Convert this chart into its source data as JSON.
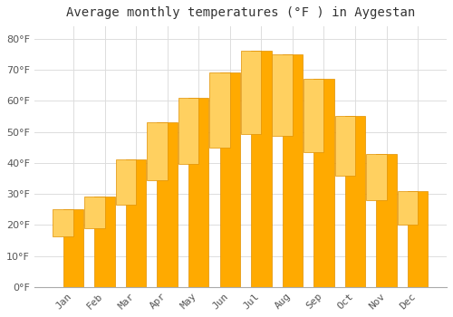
{
  "title": "Average monthly temperatures (°F ) in Aygestan",
  "months": [
    "Jan",
    "Feb",
    "Mar",
    "Apr",
    "May",
    "Jun",
    "Jul",
    "Aug",
    "Sep",
    "Oct",
    "Nov",
    "Dec"
  ],
  "values": [
    25,
    29,
    41,
    53,
    61,
    69,
    76,
    75,
    67,
    55,
    43,
    31
  ],
  "bar_color": "#FFAA00",
  "bar_color_top": "#FFD060",
  "bar_edge_color": "#E09000",
  "background_color": "#FFFFFF",
  "grid_color": "#DDDDDD",
  "ylim": [
    0,
    84
  ],
  "yticks": [
    0,
    10,
    20,
    30,
    40,
    50,
    60,
    70,
    80
  ],
  "ylabel_suffix": "°F",
  "title_fontsize": 10,
  "tick_fontsize": 8,
  "tick_color": "#555555"
}
